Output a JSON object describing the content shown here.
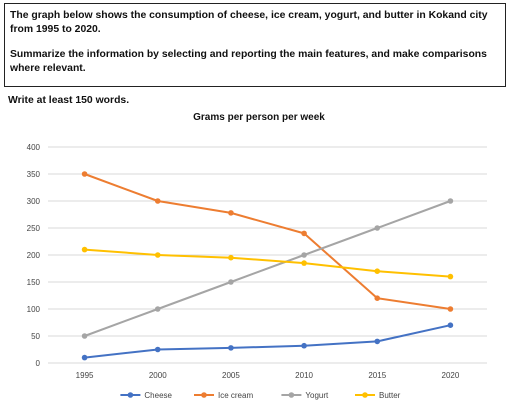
{
  "task": {
    "line1": "The graph below shows the consumption of cheese, ice cream, yogurt, and butter in Kokand city from 1995 to 2020.",
    "line2": "Summarize the information by selecting and reporting the main features, and make comparisons where relevant."
  },
  "word_requirement": "Write at least 150 words.",
  "chart_data": {
    "type": "line",
    "title": "Grams per person per week",
    "xlabel": "",
    "ylabel": "",
    "x": [
      "1995",
      "2000",
      "2005",
      "2010",
      "2015",
      "2020"
    ],
    "ylim": [
      0,
      400
    ],
    "yticks": [
      0,
      50,
      100,
      150,
      200,
      250,
      300,
      350,
      400
    ],
    "grid": true,
    "legend_position": "bottom",
    "series": [
      {
        "name": "Cheese",
        "color": "#4472C4",
        "values": [
          10,
          25,
          28,
          32,
          40,
          70
        ]
      },
      {
        "name": "Ice cream",
        "color": "#ED7D31",
        "values": [
          350,
          300,
          278,
          240,
          120,
          100
        ]
      },
      {
        "name": "Yogurt",
        "color": "#A5A5A5",
        "values": [
          50,
          100,
          150,
          200,
          250,
          300
        ]
      },
      {
        "name": "Butter",
        "color": "#FFC000",
        "values": [
          210,
          200,
          195,
          185,
          170,
          160
        ]
      }
    ]
  }
}
